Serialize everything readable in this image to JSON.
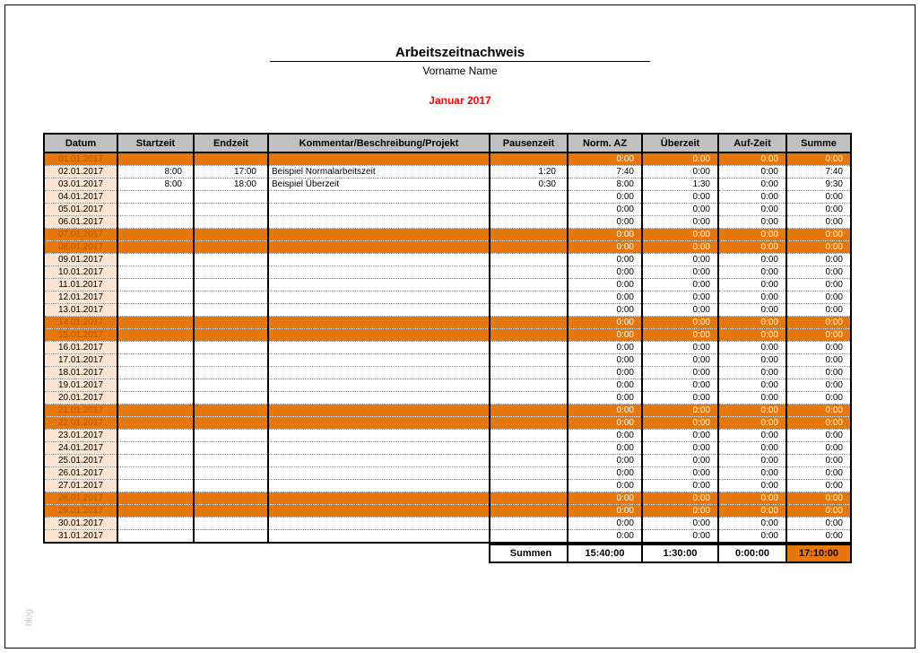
{
  "page": {
    "title": "Arbeitszeitnachweis",
    "subtitle": "Vorname Name",
    "month_label": "Januar 2017",
    "watermark": "blog"
  },
  "colors": {
    "weekend_orange": "#E8770B",
    "date_peach": "#FBE5D0",
    "header_gray": "#C0C0C0",
    "month_red": "#FF0000",
    "weekend_date_text": "#B05A08"
  },
  "table": {
    "columns": [
      "Datum",
      "Startzeit",
      "Endzeit",
      "Kommentar/Beschreibung/Projekt",
      "Pausenzeit",
      "Norm. AZ",
      "Überzeit",
      "Auf-Zeit",
      "Summe"
    ],
    "rows": [
      {
        "date": "01.01.2017",
        "start": "",
        "end": "",
        "comment": "",
        "pause": "",
        "norm": "0:00",
        "over": "0:00",
        "auf": "0:00",
        "sum": "0:00",
        "weekend": true
      },
      {
        "date": "02.01.2017",
        "start": "8:00",
        "end": "17:00",
        "comment": "Beispiel Normalarbeitszeit",
        "pause": "1:20",
        "norm": "7:40",
        "over": "0:00",
        "auf": "0:00",
        "sum": "7:40",
        "weekend": false
      },
      {
        "date": "03.01.2017",
        "start": "8:00",
        "end": "18:00",
        "comment": "Beispiel Überzeit",
        "pause": "0:30",
        "norm": "8:00",
        "over": "1:30",
        "auf": "0:00",
        "sum": "9:30",
        "weekend": false
      },
      {
        "date": "04.01.2017",
        "start": "",
        "end": "",
        "comment": "",
        "pause": "",
        "norm": "0:00",
        "over": "0:00",
        "auf": "0:00",
        "sum": "0:00",
        "weekend": false
      },
      {
        "date": "05.01.2017",
        "start": "",
        "end": "",
        "comment": "",
        "pause": "",
        "norm": "0:00",
        "over": "0:00",
        "auf": "0:00",
        "sum": "0:00",
        "weekend": false
      },
      {
        "date": "06.01.2017",
        "start": "",
        "end": "",
        "comment": "",
        "pause": "",
        "norm": "0:00",
        "over": "0:00",
        "auf": "0:00",
        "sum": "0:00",
        "weekend": false
      },
      {
        "date": "07.01.2017",
        "start": "",
        "end": "",
        "comment": "",
        "pause": "",
        "norm": "0:00",
        "over": "0:00",
        "auf": "0:00",
        "sum": "0:00",
        "weekend": true
      },
      {
        "date": "08.01.2017",
        "start": "",
        "end": "",
        "comment": "",
        "pause": "",
        "norm": "0:00",
        "over": "0:00",
        "auf": "0:00",
        "sum": "0:00",
        "weekend": true
      },
      {
        "date": "09.01.2017",
        "start": "",
        "end": "",
        "comment": "",
        "pause": "",
        "norm": "0:00",
        "over": "0:00",
        "auf": "0:00",
        "sum": "0:00",
        "weekend": false
      },
      {
        "date": "10.01.2017",
        "start": "",
        "end": "",
        "comment": "",
        "pause": "",
        "norm": "0:00",
        "over": "0:00",
        "auf": "0:00",
        "sum": "0:00",
        "weekend": false
      },
      {
        "date": "11.01.2017",
        "start": "",
        "end": "",
        "comment": "",
        "pause": "",
        "norm": "0:00",
        "over": "0:00",
        "auf": "0:00",
        "sum": "0:00",
        "weekend": false
      },
      {
        "date": "12.01.2017",
        "start": "",
        "end": "",
        "comment": "",
        "pause": "",
        "norm": "0:00",
        "over": "0:00",
        "auf": "0:00",
        "sum": "0:00",
        "weekend": false
      },
      {
        "date": "13.01.2017",
        "start": "",
        "end": "",
        "comment": "",
        "pause": "",
        "norm": "0:00",
        "over": "0:00",
        "auf": "0:00",
        "sum": "0:00",
        "weekend": false
      },
      {
        "date": "14.01.2017",
        "start": "",
        "end": "",
        "comment": "",
        "pause": "",
        "norm": "0:00",
        "over": "0:00",
        "auf": "0:00",
        "sum": "0:00",
        "weekend": true
      },
      {
        "date": "15.01.2017",
        "start": "",
        "end": "",
        "comment": "",
        "pause": "",
        "norm": "0:00",
        "over": "0:00",
        "auf": "0:00",
        "sum": "0:00",
        "weekend": true
      },
      {
        "date": "16.01.2017",
        "start": "",
        "end": "",
        "comment": "",
        "pause": "",
        "norm": "0:00",
        "over": "0:00",
        "auf": "0:00",
        "sum": "0:00",
        "weekend": false
      },
      {
        "date": "17.01.2017",
        "start": "",
        "end": "",
        "comment": "",
        "pause": "",
        "norm": "0:00",
        "over": "0:00",
        "auf": "0:00",
        "sum": "0:00",
        "weekend": false
      },
      {
        "date": "18.01.2017",
        "start": "",
        "end": "",
        "comment": "",
        "pause": "",
        "norm": "0:00",
        "over": "0:00",
        "auf": "0:00",
        "sum": "0:00",
        "weekend": false
      },
      {
        "date": "19.01.2017",
        "start": "",
        "end": "",
        "comment": "",
        "pause": "",
        "norm": "0:00",
        "over": "0:00",
        "auf": "0:00",
        "sum": "0:00",
        "weekend": false
      },
      {
        "date": "20.01.2017",
        "start": "",
        "end": "",
        "comment": "",
        "pause": "",
        "norm": "0:00",
        "over": "0:00",
        "auf": "0:00",
        "sum": "0:00",
        "weekend": false
      },
      {
        "date": "21.01.2017",
        "start": "",
        "end": "",
        "comment": "",
        "pause": "",
        "norm": "0:00",
        "over": "0:00",
        "auf": "0:00",
        "sum": "0:00",
        "weekend": true
      },
      {
        "date": "22.01.2017",
        "start": "",
        "end": "",
        "comment": "",
        "pause": "",
        "norm": "0:00",
        "over": "0:00",
        "auf": "0:00",
        "sum": "0:00",
        "weekend": true
      },
      {
        "date": "23.01.2017",
        "start": "",
        "end": "",
        "comment": "",
        "pause": "",
        "norm": "0:00",
        "over": "0:00",
        "auf": "0:00",
        "sum": "0:00",
        "weekend": false
      },
      {
        "date": "24.01.2017",
        "start": "",
        "end": "",
        "comment": "",
        "pause": "",
        "norm": "0:00",
        "over": "0:00",
        "auf": "0:00",
        "sum": "0:00",
        "weekend": false
      },
      {
        "date": "25.01.2017",
        "start": "",
        "end": "",
        "comment": "",
        "pause": "",
        "norm": "0:00",
        "over": "0:00",
        "auf": "0:00",
        "sum": "0:00",
        "weekend": false
      },
      {
        "date": "26.01.2017",
        "start": "",
        "end": "",
        "comment": "",
        "pause": "",
        "norm": "0:00",
        "over": "0:00",
        "auf": "0:00",
        "sum": "0:00",
        "weekend": false
      },
      {
        "date": "27.01.2017",
        "start": "",
        "end": "",
        "comment": "",
        "pause": "",
        "norm": "0:00",
        "over": "0:00",
        "auf": "0:00",
        "sum": "0:00",
        "weekend": false
      },
      {
        "date": "28.01.2017",
        "start": "",
        "end": "",
        "comment": "",
        "pause": "",
        "norm": "0:00",
        "over": "0:00",
        "auf": "0:00",
        "sum": "0:00",
        "weekend": true
      },
      {
        "date": "29.01.2017",
        "start": "",
        "end": "",
        "comment": "",
        "pause": "",
        "norm": "0:00",
        "over": "0:00",
        "auf": "0:00",
        "sum": "0:00",
        "weekend": true
      },
      {
        "date": "30.01.2017",
        "start": "",
        "end": "",
        "comment": "",
        "pause": "",
        "norm": "0:00",
        "over": "0:00",
        "auf": "0:00",
        "sum": "0:00",
        "weekend": false
      },
      {
        "date": "31.01.2017",
        "start": "",
        "end": "",
        "comment": "",
        "pause": "",
        "norm": "0:00",
        "over": "0:00",
        "auf": "0:00",
        "sum": "0:00",
        "weekend": false
      }
    ],
    "footer": {
      "label": "Summen",
      "norm_az": "15:40:00",
      "ueberzeit": "1:30:00",
      "auf_zeit": "0:00:00",
      "summe": "17:10:00"
    }
  }
}
